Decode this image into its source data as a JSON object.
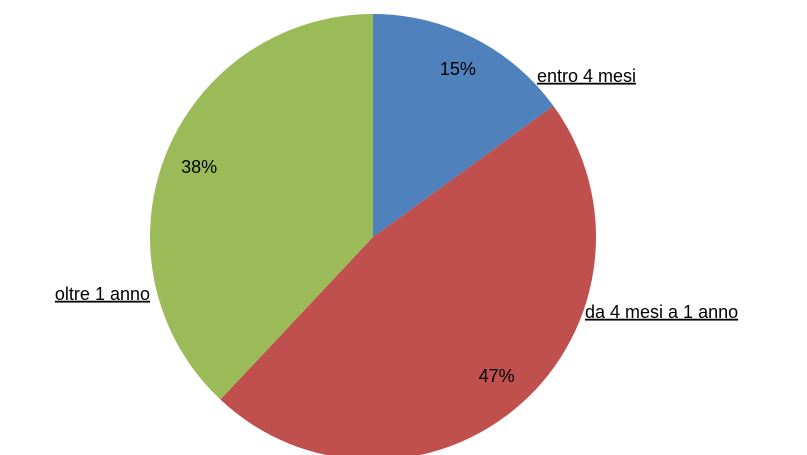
{
  "chart_data": {
    "type": "pie",
    "categories": [
      "entro 4 mesi",
      "da 4 mesi a 1 anno",
      "oltre 1 anno"
    ],
    "values": [
      15,
      47,
      38
    ],
    "value_labels": [
      "15%",
      "47%",
      "38%"
    ],
    "colors": [
      "#4f81bd",
      "#c0504d",
      "#9bbb59"
    ]
  }
}
